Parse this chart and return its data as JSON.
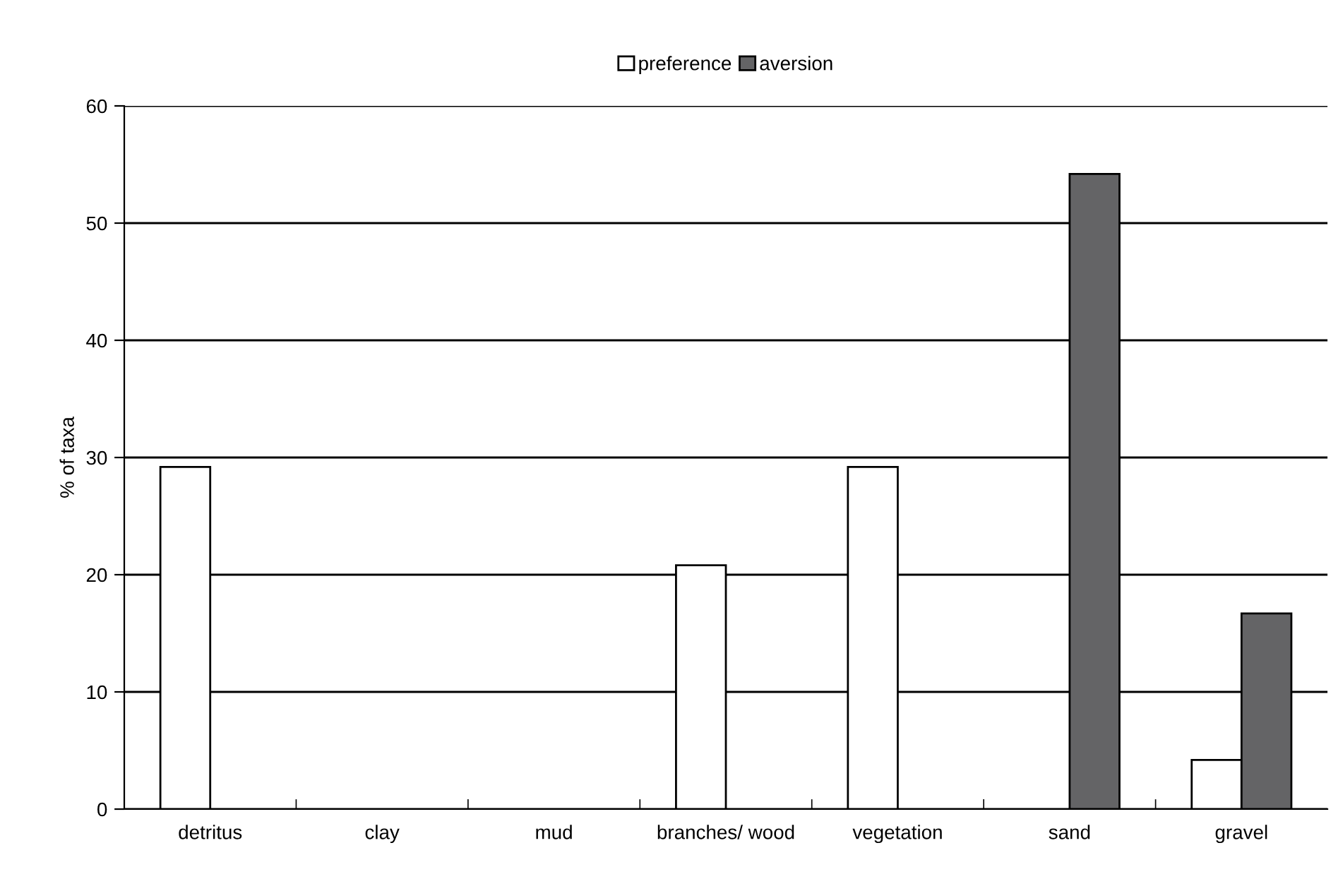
{
  "chart_data": {
    "type": "bar",
    "ylabel": "% of taxa",
    "categories": [
      "detritus",
      "clay",
      "mud",
      "branches/ wood",
      "vegetation",
      "sand",
      "gravel"
    ],
    "series": [
      {
        "name": "preference",
        "color": "#ffffff",
        "values": [
          29.2,
          null,
          null,
          20.8,
          29.2,
          null,
          4.2
        ]
      },
      {
        "name": "aversion",
        "color": "#646466",
        "values": [
          null,
          null,
          null,
          null,
          null,
          54.2,
          16.7
        ]
      }
    ],
    "ylim": [
      0,
      60
    ],
    "yticks": [
      0,
      10,
      20,
      30,
      40,
      50,
      60
    ],
    "grid": "y",
    "legend": "top"
  }
}
